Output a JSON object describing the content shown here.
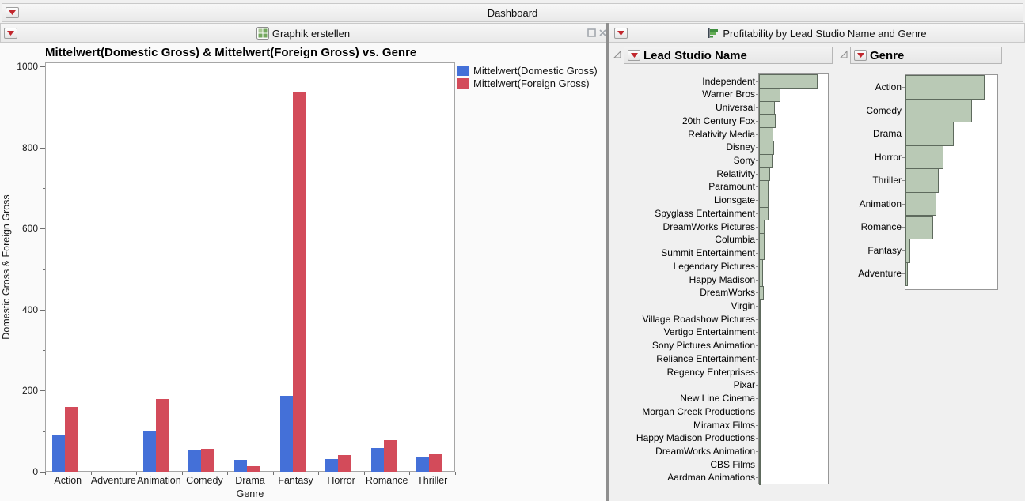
{
  "colors": {
    "accent_red": "#c1272d",
    "series_blue": "#4470D8",
    "series_red": "#D34B5A",
    "hist_fill": "#B9C9B5",
    "hist_border": "#5E6A5D",
    "background": "#f0f0f0"
  },
  "top_bar": {
    "title": "Dashboard",
    "menu_icon": "red-triangle-icon"
  },
  "left_panel": {
    "title": "Graphik erstellen",
    "icon": "graph-builder-icon",
    "controls": [
      "maximize",
      "close"
    ]
  },
  "right_panel": {
    "title": "Profitability by Lead Studio Name and Genre",
    "icon": "bar-chart-icon",
    "controls": [
      "maximize",
      "close"
    ]
  },
  "sections": [
    {
      "title": "Lead Studio Name"
    },
    {
      "title": "Genre"
    }
  ],
  "chart_data": [
    {
      "id": "gross_by_genre",
      "type": "bar",
      "title": "Mittelwert(Domestic Gross) & Mittelwert(Foreign Gross) vs. Genre",
      "xlabel": "Genre",
      "ylabel": "Domestic Gross & Foreign Gross",
      "ylim": [
        0,
        1000
      ],
      "yticks_major": [
        0,
        200,
        400,
        600,
        800,
        1000
      ],
      "yticks_minor": [
        100,
        300,
        500,
        700,
        900
      ],
      "grid": false,
      "legend_position": "right-top",
      "categories": [
        "Action",
        "Adventure",
        "Animation",
        "Comedy",
        "Drama",
        "Fantasy",
        "Horror",
        "Romance",
        "Thriller"
      ],
      "series": [
        {
          "name": "Mittelwert(Domestic Gross)",
          "color_key": "series_blue",
          "values": [
            90,
            null,
            100,
            55,
            30,
            187,
            32,
            58,
            37
          ]
        },
        {
          "name": "Mittelwert(Foreign Gross)",
          "color_key": "series_red",
          "values": [
            160,
            null,
            180,
            57,
            14,
            938,
            41,
            78,
            45
          ]
        }
      ]
    },
    {
      "id": "lead_studio_distribution",
      "type": "bar",
      "orientation": "horizontal",
      "title": "Lead Studio Name",
      "note": "unlabeled count axis; values are relative bar lengths in px",
      "categories": [
        "Independent",
        "Warner Bros",
        "Universal",
        "20th Century Fox",
        "Relativity Media",
        "Disney",
        "Sony",
        "Relativity",
        "Paramount",
        "Lionsgate",
        "Spyglass Entertainment",
        "DreamWorks Pictures",
        "Columbia",
        "Summit Entertainment",
        "Legendary Pictures",
        "Happy Madison",
        "DreamWorks",
        "Virgin",
        "Village Roadshow Pictures",
        "Vertigo Entertainment",
        "Sony Pictures Animation",
        "Reliance Entertainment",
        "Regency Enterprises",
        "Pixar",
        "New Line Cinema",
        "Morgan Creek Productions",
        "Miramax Films",
        "Happy Madison Productions",
        "DreamWorks Animation",
        "CBS Films",
        "Aardman Animations"
      ],
      "values": [
        74,
        27,
        20,
        21,
        18,
        19,
        17,
        14,
        12,
        12,
        12,
        7,
        7,
        7,
        5,
        5,
        6,
        2,
        2,
        2,
        2,
        2,
        2,
        1,
        1,
        1,
        1,
        1,
        1,
        1,
        1
      ]
    },
    {
      "id": "genre_distribution",
      "type": "bar",
      "orientation": "horizontal",
      "title": "Genre",
      "note": "unlabeled count axis; values are relative bar lengths in px",
      "categories": [
        "Action",
        "Comedy",
        "Drama",
        "Horror",
        "Thriller",
        "Animation",
        "Romance",
        "Fantasy",
        "Adventure"
      ],
      "values": [
        100,
        84,
        61,
        48,
        42,
        39,
        35,
        6,
        3
      ]
    }
  ]
}
